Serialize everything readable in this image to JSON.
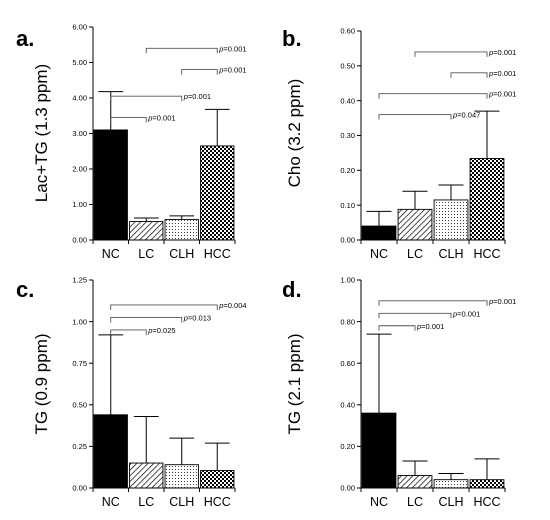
{
  "chart_data": [
    {
      "type": "bar",
      "panel": "a.",
      "ylabel": "Lac+TG (1.3 ppm)",
      "categories": [
        "NC",
        "LC",
        "CLH",
        "HCC"
      ],
      "values": [
        3.1,
        0.52,
        0.58,
        2.65
      ],
      "errors": [
        1.08,
        0.1,
        0.1,
        1.03
      ],
      "ylim": [
        0,
        6
      ],
      "ticks": [
        "0.00",
        "1.00",
        "2.00",
        "3.00",
        "4.00",
        "5.00",
        "6.00"
      ],
      "comparisons": [
        {
          "from": 1,
          "to": 3,
          "y": 5.4,
          "label": "p=0.001"
        },
        {
          "from": 2,
          "to": 3,
          "y": 4.8,
          "label": "p=0.001"
        },
        {
          "from": 0,
          "to": 2,
          "y": 4.05,
          "label": "p=0.001"
        },
        {
          "from": 0,
          "to": 1,
          "y": 3.45,
          "label": "p=0.001"
        }
      ]
    },
    {
      "type": "bar",
      "panel": "b.",
      "ylabel": "Cho (3.2 ppm)",
      "categories": [
        "NC",
        "LC",
        "CLH",
        "HCC"
      ],
      "values": [
        0.04,
        0.088,
        0.115,
        0.234
      ],
      "errors": [
        0.042,
        0.052,
        0.043,
        0.136
      ],
      "ylim": [
        0,
        0.6
      ],
      "ticks": [
        "0.00",
        "0.10",
        "0.20",
        "0.30",
        "0.40",
        "0.50",
        "0.60"
      ],
      "comparisons": [
        {
          "from": 1,
          "to": 3,
          "y": 0.54,
          "label": "p=0.001"
        },
        {
          "from": 2,
          "to": 3,
          "y": 0.48,
          "label": "p=0.001"
        },
        {
          "from": 0,
          "to": 3,
          "y": 0.42,
          "label": "p=0.001"
        },
        {
          "from": 0,
          "to": 2,
          "y": 0.36,
          "label": "p=0.047"
        }
      ]
    },
    {
      "type": "bar",
      "panel": "c.",
      "ylabel": "TG (0.9 ppm)",
      "categories": [
        "NC",
        "LC",
        "CLH",
        "HCC"
      ],
      "values": [
        0.44,
        0.15,
        0.14,
        0.105
      ],
      "errors": [
        0.48,
        0.28,
        0.16,
        0.165
      ],
      "ylim": [
        0,
        1.25
      ],
      "ticks": [
        "0.00",
        "0.25",
        "0.50",
        "0.75",
        "1.00",
        "1.25"
      ],
      "comparisons": [
        {
          "from": 0,
          "to": 3,
          "y": 1.1,
          "label": "p=0.004"
        },
        {
          "from": 0,
          "to": 2,
          "y": 1.025,
          "label": "p=0.013"
        },
        {
          "from": 0,
          "to": 1,
          "y": 0.95,
          "label": "p=0.025"
        }
      ]
    },
    {
      "type": "bar",
      "panel": "d.",
      "ylabel": "TG (2.1 ppm)",
      "categories": [
        "NC",
        "LC",
        "CLH",
        "HCC"
      ],
      "values": [
        0.36,
        0.06,
        0.04,
        0.04
      ],
      "errors": [
        0.38,
        0.07,
        0.03,
        0.1
      ],
      "ylim": [
        0,
        1.0
      ],
      "ticks": [
        "0.00",
        "0.20",
        "0.40",
        "0.60",
        "0.80",
        "1.00"
      ],
      "comparisons": [
        {
          "from": 0,
          "to": 3,
          "y": 0.9,
          "label": "p=0.001"
        },
        {
          "from": 0,
          "to": 2,
          "y": 0.84,
          "label": "p=0.001"
        },
        {
          "from": 0,
          "to": 1,
          "y": 0.78,
          "label": "p=0.001"
        }
      ]
    }
  ]
}
